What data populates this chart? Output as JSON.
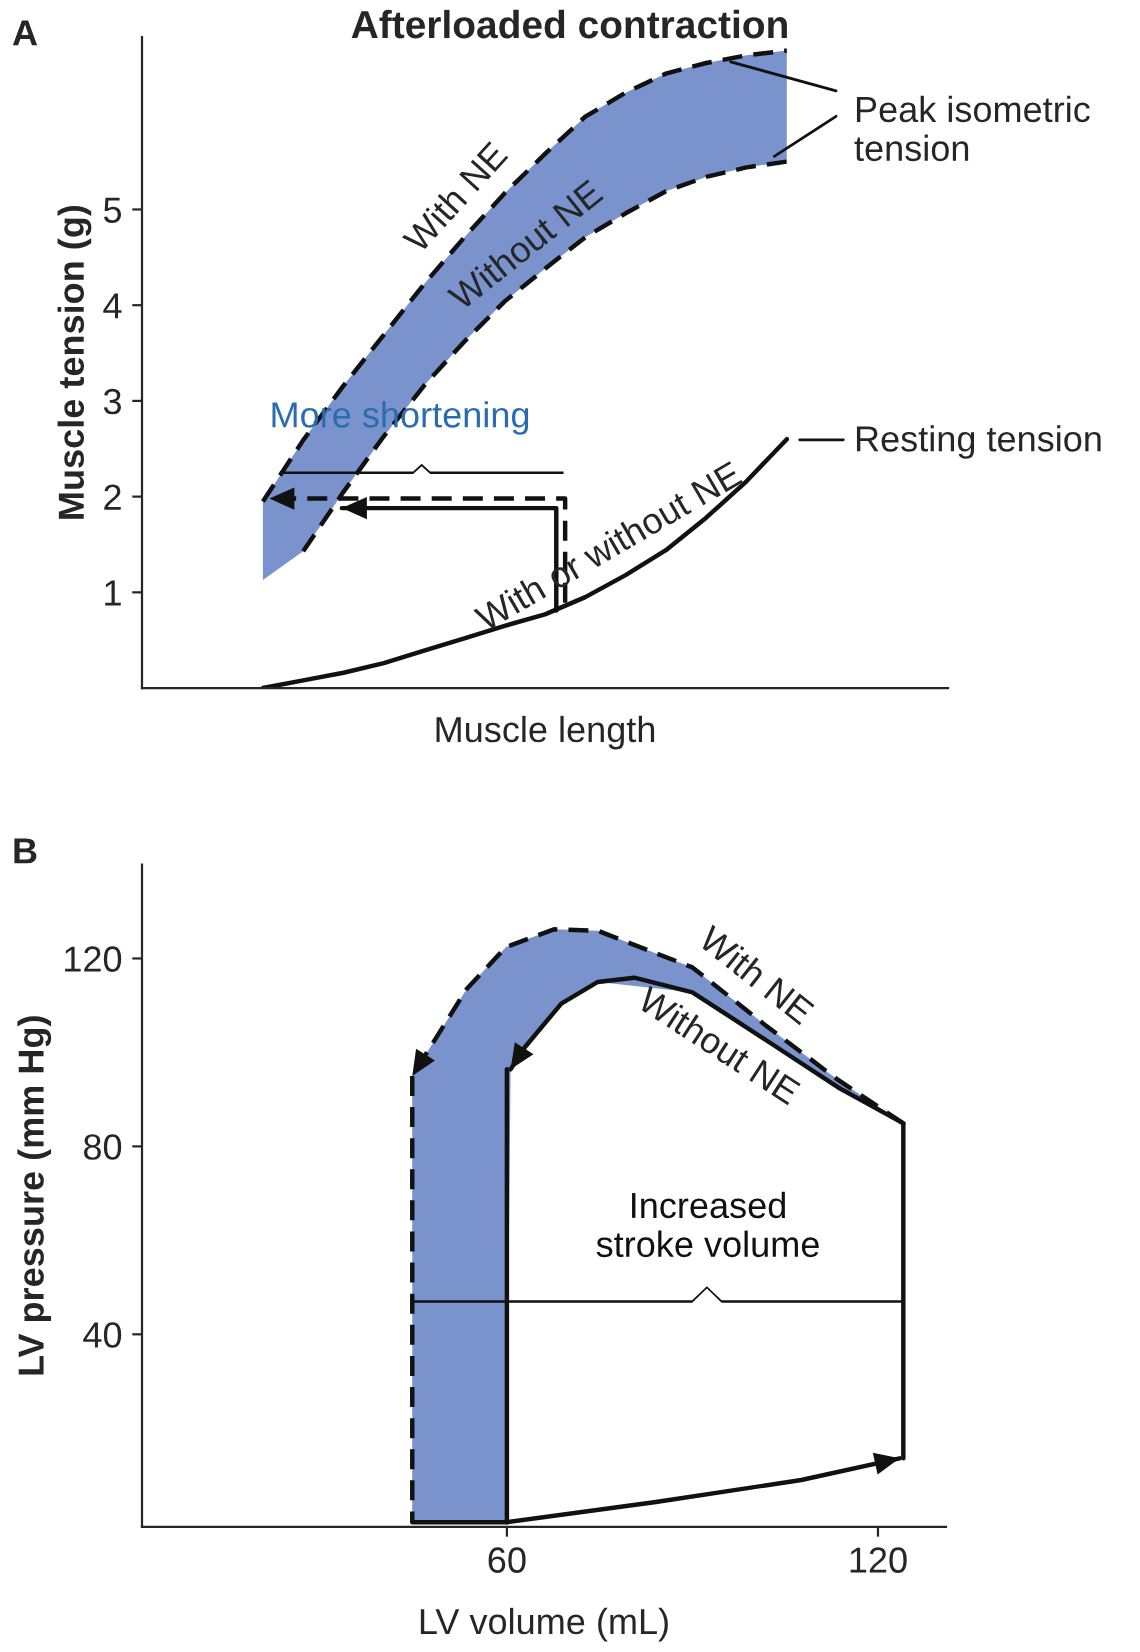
{
  "chart_data": [
    {
      "type": "line",
      "title": "Afterloaded contraction",
      "xlabel": "Muscle length",
      "ylabel": "Muscle tension (g)",
      "categories": [
        null,
        null,
        null,
        null,
        null,
        null,
        null,
        null,
        null,
        null,
        null,
        null,
        null,
        null
      ],
      "ylim": [
        0,
        6.8
      ],
      "yticks": [
        1,
        2,
        3,
        4,
        5
      ],
      "tick_labels": "y",
      "annotations": [
        "A",
        "Peak isometric tension",
        "Resting tension",
        "More shortening"
      ],
      "series": [
        {
          "name": "With NE",
          "color": "#111111",
          "line_style": "dashed",
          "values": [
            1.95,
            2.59,
            3.16,
            3.69,
            4.22,
            4.71,
            5.17,
            5.58,
            5.97,
            6.22,
            6.42,
            6.53,
            6.61,
            6.66
          ],
          "lower": [
            1.13,
            1.43,
            2.05,
            2.63,
            3.16,
            3.62,
            4.04,
            4.38,
            4.71,
            4.96,
            5.19,
            5.34,
            5.44,
            5.5
          ],
          "upper": [
            1.95,
            2.59,
            3.16,
            3.69,
            4.22,
            4.71,
            5.17,
            5.58,
            5.97,
            6.22,
            6.42,
            6.53,
            6.61,
            6.66
          ]
        },
        {
          "name": "Without NE",
          "color": "#111111",
          "line_style": "dashed",
          "values": [
            null,
            1.43,
            2.05,
            2.63,
            3.16,
            3.62,
            4.04,
            4.38,
            4.71,
            4.96,
            5.19,
            5.34,
            5.44,
            5.5
          ]
        },
        {
          "name": "With or without NE",
          "color": "#111111",
          "line_style": "solid",
          "values": [
            0,
            0.08,
            0.16,
            0.26,
            0.39,
            0.52,
            0.65,
            0.77,
            0.95,
            1.18,
            1.44,
            1.78,
            2.16,
            2.6
          ]
        }
      ]
    },
    {
      "type": "line",
      "xlabel": "LV volume (mL)",
      "ylabel": "LV pressure (mm Hg)",
      "xlim": [
        1,
        131
      ],
      "ylim": [
        -1,
        140
      ],
      "xticks": [
        60,
        120
      ],
      "yticks": [
        40,
        80,
        120
      ],
      "annotations": [
        "B",
        "Increased\nstroke volume"
      ],
      "series": [
        {
          "name": "With NE",
          "color": "#111111",
          "line_style": "dashed",
          "x": [
            124.1,
            113.5,
            101.8,
            90,
            74.7,
            67.6,
            60.6,
            59.9,
            53.5,
            47.6,
            44.7
          ],
          "values": [
            84.9,
            94.2,
            105.8,
            118.1,
            125.9,
            126.2,
            122.8,
            122.5,
            113.5,
            101.1,
            95
          ],
          "lower": [
            84.9,
            92.6,
            102.7,
            112.8,
            115,
            109,
            96.4,
            0,
            0,
            0,
            0
          ],
          "upper": [
            84.9,
            94.2,
            105.8,
            118.1,
            125.9,
            126.2,
            122.8,
            122.5,
            113.5,
            101.1,
            95
          ]
        },
        {
          "color": "#111111",
          "line_style": "dashed",
          "x": [
            44.7,
            44.7
          ],
          "values": [
            95,
            0
          ]
        },
        {
          "name": "Without NE",
          "color": "#111111",
          "line_style": "solid",
          "x": [
            124.1,
            113.5,
            101.8,
            90,
            80.6,
            74.7,
            68.8,
            62.9,
            60.6
          ],
          "values": [
            84.9,
            92.6,
            102.7,
            112.8,
            115.9,
            115,
            110.4,
            101.1,
            96.4
          ]
        },
        {
          "color": "#111111",
          "line_style": "solid",
          "x": [
            60,
            60
          ],
          "values": [
            96.4,
            0
          ]
        },
        {
          "color": "#111111",
          "line_style": "solid",
          "x": [
            44.7,
            60,
            84.1,
            107.6,
            123.5
          ],
          "values": [
            0,
            0,
            4.3,
            9,
            13.6
          ]
        },
        {
          "color": "#111111",
          "line_style": "solid",
          "x": [
            124.1,
            124.1
          ],
          "values": [
            13.6,
            84.9
          ]
        }
      ]
    }
  ]
}
